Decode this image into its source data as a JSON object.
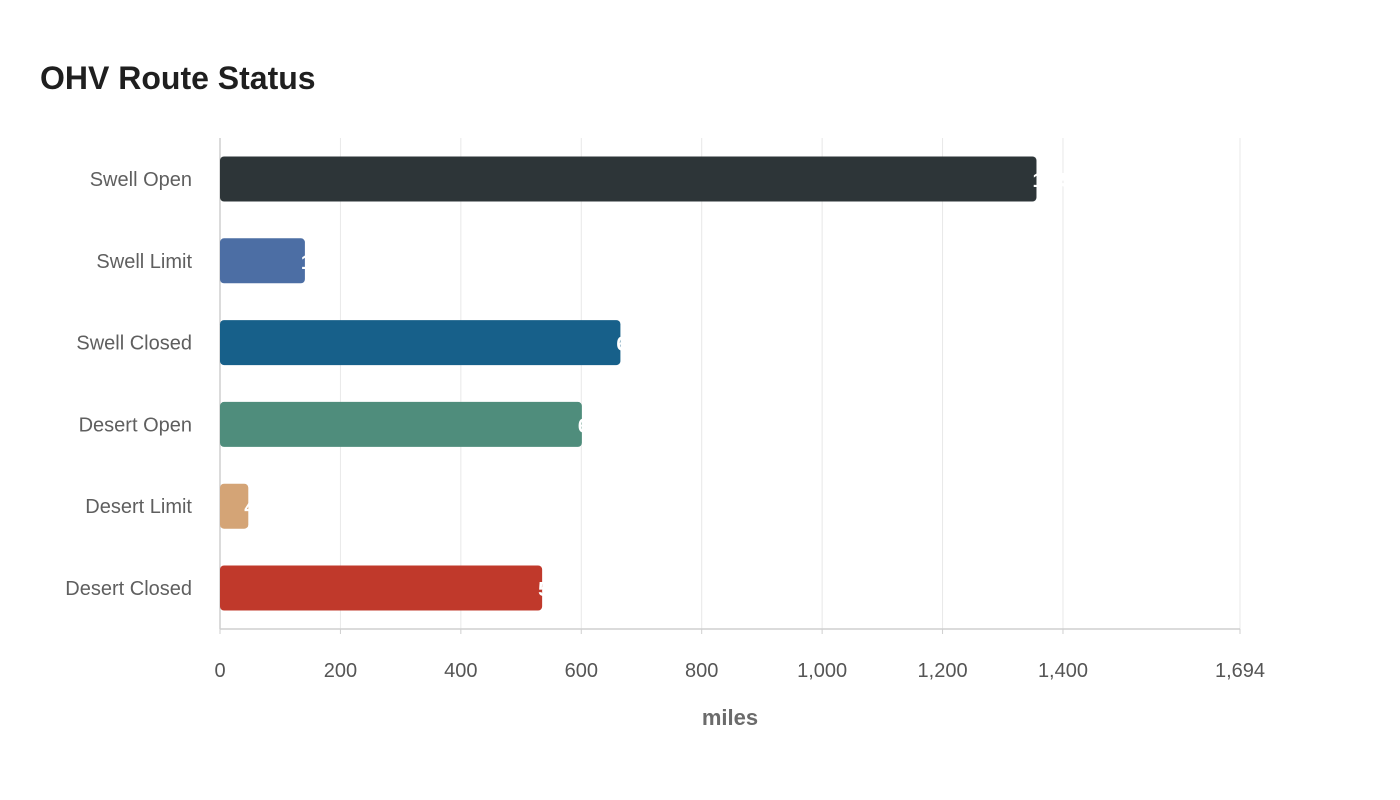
{
  "chart_data": {
    "type": "bar",
    "orientation": "horizontal",
    "title": "OHV Route Status",
    "xlabel": "miles",
    "ylabel": "",
    "categories": [
      "Swell Open",
      "Swell Limit",
      "Swell Closed",
      "Desert Open",
      "Desert Limit",
      "Desert Closed"
    ],
    "values": [
      1356,
      141,
      665,
      601,
      47,
      535
    ],
    "colors": [
      "#2d3538",
      "#4c6ea4",
      "#17608a",
      "#4f8d7c",
      "#d4a476",
      "#c0392b"
    ],
    "xlim": [
      0,
      1694
    ],
    "xticks": [
      0,
      200,
      400,
      600,
      800,
      1000,
      1200,
      1400,
      1694
    ],
    "xtick_labels": [
      "0",
      "200",
      "400",
      "600",
      "800",
      "1,000",
      "1,200",
      "1,400",
      "1,694"
    ],
    "data_labels": [
      "1,356",
      "141",
      "665",
      "601",
      "47",
      "535"
    ],
    "grid": true,
    "legend": "none"
  }
}
